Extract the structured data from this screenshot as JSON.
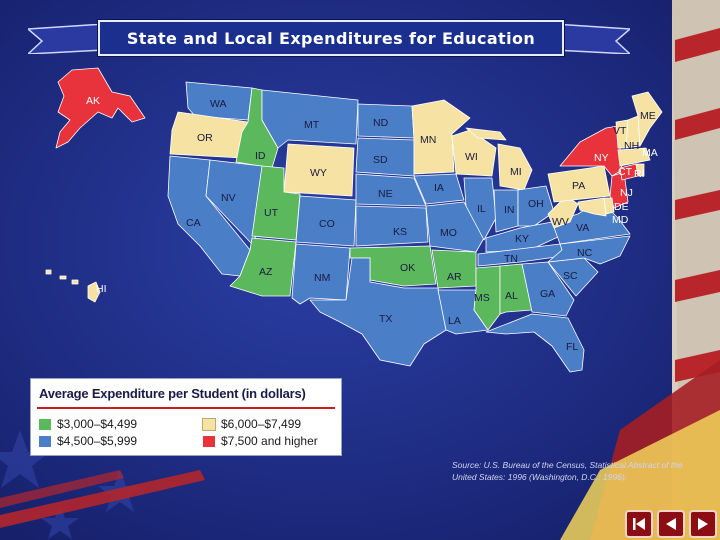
{
  "title": "State and Local Expenditures for Education",
  "legend": {
    "title": "Average Expenditure per Student (in dollars)",
    "items": [
      {
        "label": "$3,000–$4,499",
        "category": "low",
        "color": "#5cb85c"
      },
      {
        "label": "$4,500–$5,999",
        "category": "mid",
        "color": "#4a7ec6"
      },
      {
        "label": "$6,000–$7,499",
        "category": "high",
        "color": "#f6e3a3"
      },
      {
        "label": "$7,500 and higher",
        "category": "top",
        "color": "#e8323c"
      }
    ]
  },
  "source": "Source: U.S. Bureau of the Census, Statistical Abstract of the United States: 1996 (Washington, D.C.: 1996).",
  "states": {
    "AK": "top",
    "HI": "high",
    "WA": "mid",
    "OR": "high",
    "CA": "mid",
    "ID": "low",
    "NV": "mid",
    "UT": "low",
    "AZ": "low",
    "MT": "mid",
    "WY": "high",
    "CO": "mid",
    "NM": "mid",
    "ND": "mid",
    "SD": "mid",
    "NE": "mid",
    "KS": "mid",
    "OK": "low",
    "TX": "mid",
    "MN": "high",
    "IA": "mid",
    "MO": "mid",
    "AR": "low",
    "LA": "mid",
    "WI": "high",
    "IL": "mid",
    "MI": "high",
    "IN": "mid",
    "OH": "mid",
    "KY": "mid",
    "TN": "mid",
    "MS": "low",
    "AL": "low",
    "GA": "mid",
    "FL": "mid",
    "SC": "mid",
    "NC": "mid",
    "VA": "mid",
    "WV": "high",
    "PA": "high",
    "NY": "top",
    "VT": "high",
    "NH": "high",
    "ME": "high",
    "MA": "high",
    "RI": "high",
    "CT": "top",
    "NJ": "top",
    "DE": "high",
    "MD": "high"
  },
  "nav": {
    "first": "first-slide",
    "prev": "previous-slide",
    "next": "next-slide"
  }
}
